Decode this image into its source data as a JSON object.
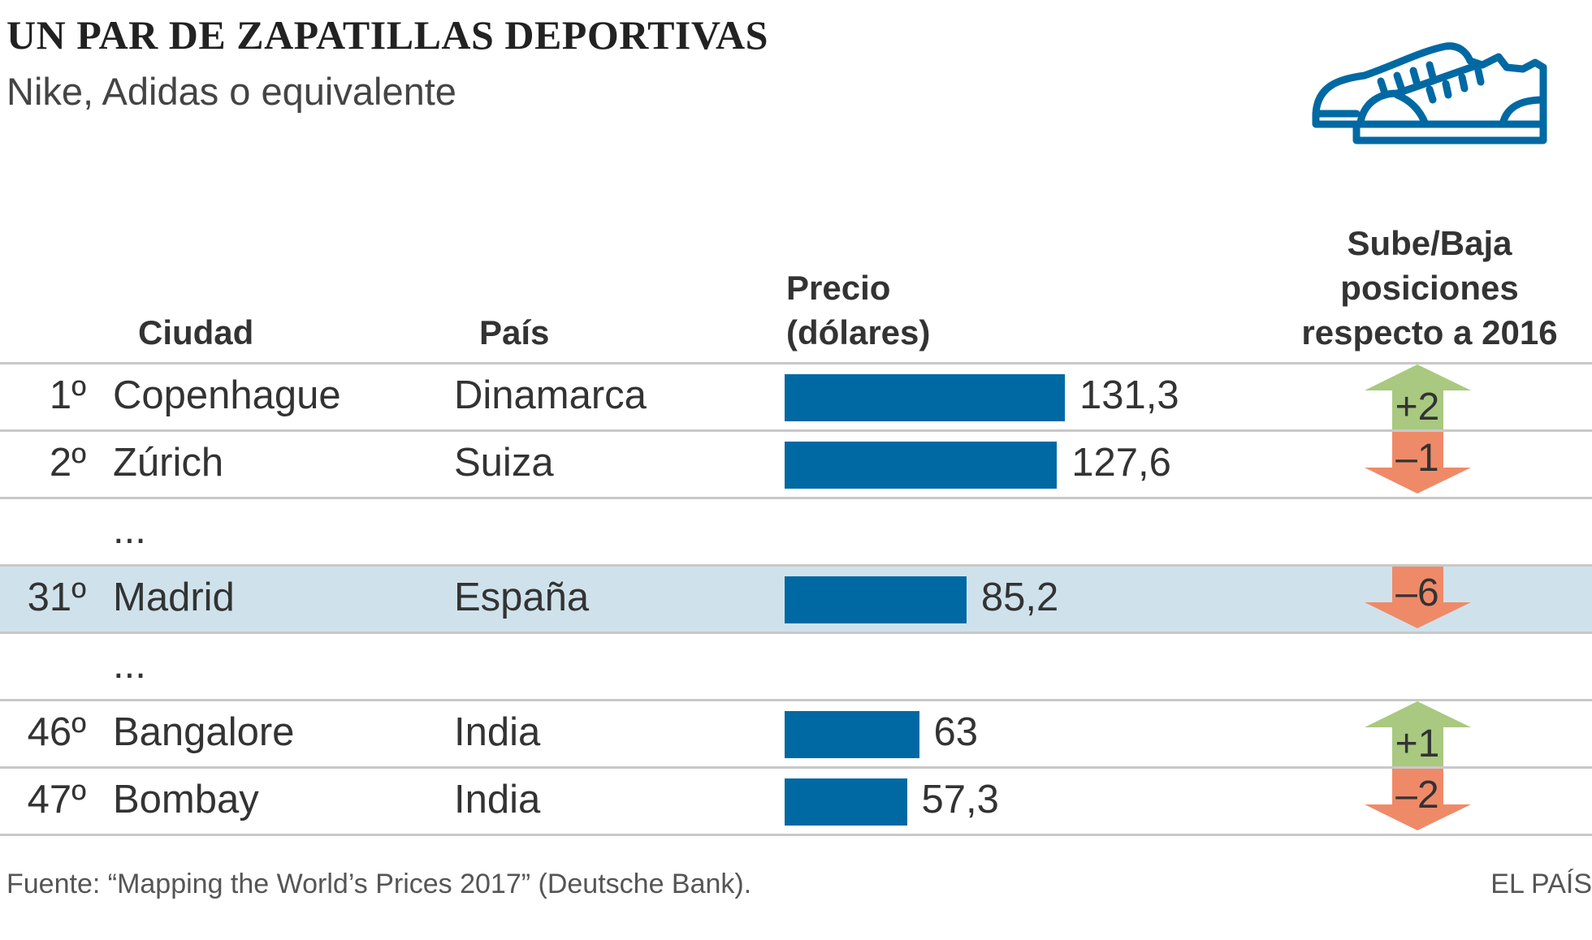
{
  "title": "UN PAR DE ZAPATILLAS DEPORTIVAS",
  "subtitle": "Nike, Adidas o equivalente",
  "icon": "sneakers-icon",
  "headers": {
    "city": "Ciudad",
    "country": "País",
    "price": [
      "Precio",
      "(dólares)"
    ],
    "change": [
      "Sube/Baja",
      "posiciones",
      "respecto a 2016"
    ]
  },
  "colors": {
    "bar": "#0069a3",
    "up": "#a8c97f",
    "down": "#ef8a68",
    "highlight": "#cfe2ec"
  },
  "chart_data": {
    "type": "table",
    "rows": [
      {
        "rank": "1º",
        "city": "Copenhague",
        "country": "Dinamarca",
        "price": 131.3,
        "price_label": "131,3",
        "change": 2,
        "change_label": "+2"
      },
      {
        "rank": "2º",
        "city": "Zúrich",
        "country": "Suiza",
        "price": 127.6,
        "price_label": "127,6",
        "change": -1,
        "change_label": "–1"
      },
      {
        "ellipsis": "..."
      },
      {
        "rank": "31º",
        "city": "Madrid",
        "country": "España",
        "price": 85.2,
        "price_label": "85,2",
        "change": -6,
        "change_label": "–6",
        "highlight": true
      },
      {
        "ellipsis": "..."
      },
      {
        "rank": "46º",
        "city": "Bangalore",
        "country": "India",
        "price": 63,
        "price_label": "63",
        "change": 1,
        "change_label": "+1"
      },
      {
        "rank": "47º",
        "city": "Bombay",
        "country": "India",
        "price": 57.3,
        "price_label": "57,3",
        "change": -2,
        "change_label": "–2"
      }
    ]
  },
  "footer": "Fuente: “Mapping the World’s Prices 2017” (Deutsche Bank).",
  "brand": "EL PAÍS"
}
